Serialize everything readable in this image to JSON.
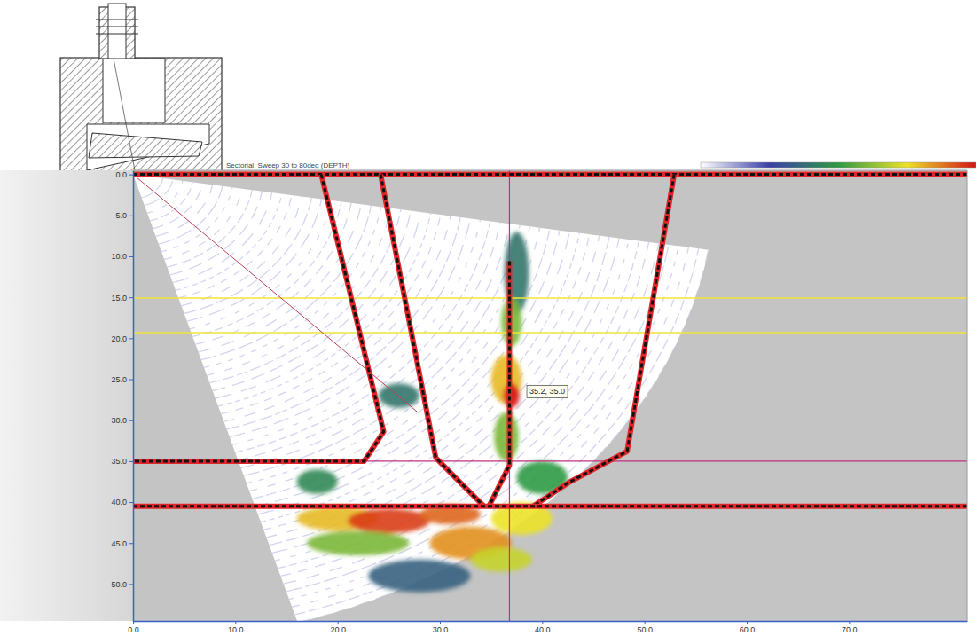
{
  "chart_data": {
    "type": "sector_scan",
    "title": "Sectorial: Sweep 30 to 80deg (DEPTH)",
    "xlim": [
      0,
      81.5
    ],
    "xticks": [
      {
        "value": 0,
        "label": "0.0"
      },
      {
        "value": 10,
        "label": "10.0"
      },
      {
        "value": 20,
        "label": "20.0"
      },
      {
        "value": 30,
        "label": "30.0"
      },
      {
        "value": 40,
        "label": "40.0"
      },
      {
        "value": 50,
        "label": "50.0"
      },
      {
        "value": 60,
        "label": "60.0"
      },
      {
        "value": 70,
        "label": "70.0"
      }
    ],
    "ylim": [
      -0.5,
      54.5
    ],
    "yticks": [
      {
        "value": 0,
        "label": "0.0"
      },
      {
        "value": 5,
        "label": "5.0"
      },
      {
        "value": 10,
        "label": "10.0"
      },
      {
        "value": 15,
        "label": "15.0"
      },
      {
        "value": 20,
        "label": "20.0"
      },
      {
        "value": 25,
        "label": "25.0"
      },
      {
        "value": 30,
        "label": "30.0"
      },
      {
        "value": 35,
        "label": "35.0"
      },
      {
        "value": 40,
        "label": "40.0"
      },
      {
        "value": 45,
        "label": "45.0"
      },
      {
        "value": 50,
        "label": "50.0"
      }
    ],
    "sector": {
      "origin": [
        0,
        0
      ],
      "angles": [
        16.4,
        80.7
      ],
      "radius": 57
    },
    "color_bar": {
      "range": [
        0,
        100
      ]
    },
    "indications": [
      {
        "x": 37.5,
        "y": 12,
        "rx": 1.2,
        "ry": 5,
        "level": 40
      },
      {
        "x": 37,
        "y": 18,
        "rx": 1,
        "ry": 3,
        "level": 60
      },
      {
        "x": 36.5,
        "y": 25,
        "rx": 1.5,
        "ry": 3,
        "level": 80
      },
      {
        "x": 37,
        "y": 27,
        "rx": 0.8,
        "ry": 1.5,
        "level": 100
      },
      {
        "x": 36.5,
        "y": 32,
        "rx": 1.2,
        "ry": 3,
        "level": 60
      },
      {
        "x": 20,
        "y": 42,
        "rx": 4,
        "ry": 1.5,
        "level": 80
      },
      {
        "x": 25,
        "y": 42.3,
        "rx": 4,
        "ry": 1.5,
        "level": 95
      },
      {
        "x": 31,
        "y": 41.5,
        "rx": 3,
        "ry": 1.2,
        "level": 90
      },
      {
        "x": 22,
        "y": 45,
        "rx": 5,
        "ry": 1.5,
        "level": 60
      },
      {
        "x": 33,
        "y": 45,
        "rx": 4,
        "ry": 2,
        "level": 85
      },
      {
        "x": 38,
        "y": 42,
        "rx": 3,
        "ry": 2,
        "level": 75
      },
      {
        "x": 36,
        "y": 47,
        "rx": 3,
        "ry": 1.5,
        "level": 70
      },
      {
        "x": 18,
        "y": 37.5,
        "rx": 2,
        "ry": 1.5,
        "level": 45
      },
      {
        "x": 26,
        "y": 27,
        "rx": 2,
        "ry": 1.5,
        "level": 40
      },
      {
        "x": 40,
        "y": 37,
        "rx": 2.5,
        "ry": 2,
        "level": 50
      },
      {
        "x": 28,
        "y": 49,
        "rx": 5,
        "ry": 2,
        "level": 35
      }
    ],
    "weld_profile": [
      [
        [
          0,
          0
        ],
        [
          81.5,
          0
        ]
      ],
      [
        [
          18.4,
          0
        ],
        [
          24.5,
          31.4
        ],
        [
          22.6,
          35
        ],
        [
          0,
          35
        ]
      ],
      [
        [
          24.2,
          0
        ],
        [
          29.6,
          34.6
        ],
        [
          34.3,
          40.5
        ]
      ],
      [
        [
          36.8,
          10.6
        ],
        [
          36.8,
          35.5
        ],
        [
          34.8,
          40.5
        ]
      ],
      [
        [
          52.9,
          0
        ],
        [
          48.3,
          33.8
        ],
        [
          42.6,
          37.6
        ],
        [
          39.1,
          40.5
        ]
      ],
      [
        [
          0,
          40.5
        ],
        [
          81.5,
          40.5
        ]
      ]
    ],
    "gates": [
      15.1,
      19.3
    ],
    "beam": [
      [
        0,
        0
      ],
      [
        27.8,
        29
      ]
    ],
    "cursor": {
      "x": 36.8,
      "y": 35.0
    },
    "annotation": {
      "text": "35.2, 35.0",
      "x": 38.5,
      "y": 26.5
    }
  }
}
